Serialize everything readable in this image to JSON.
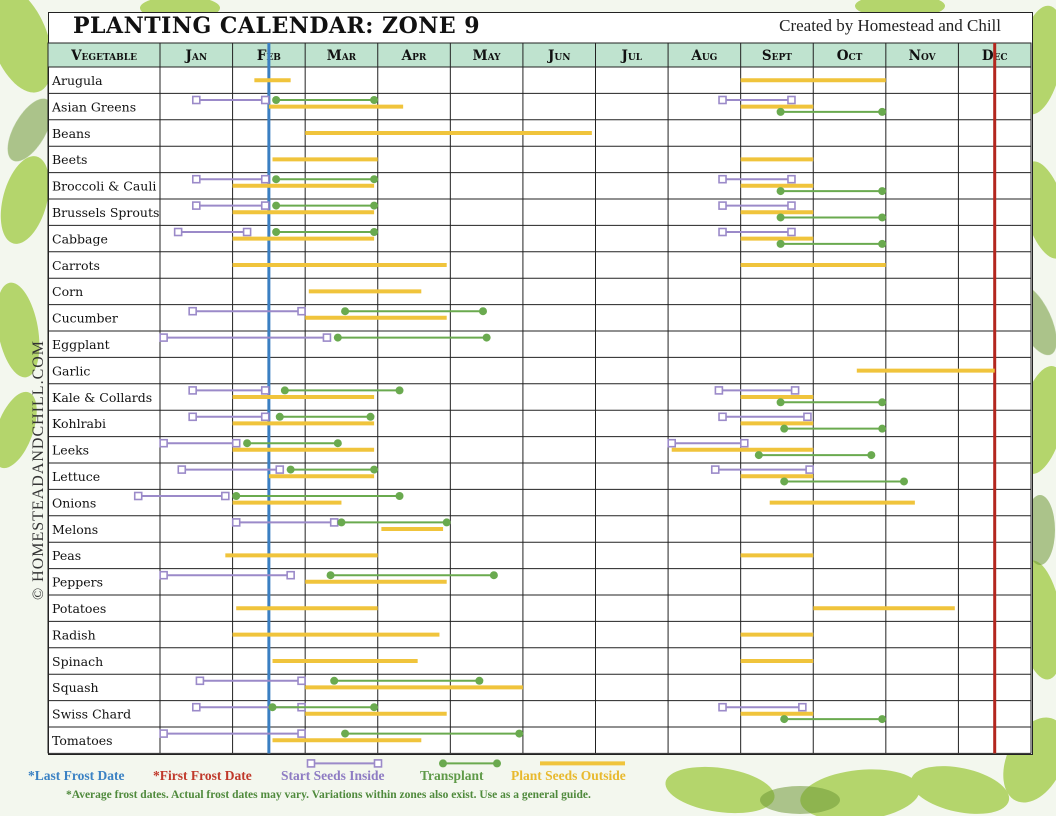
{
  "header": {
    "title": "PLANTING CALENDAR: ZONE 9",
    "credit": "Created by Homestead and Chill"
  },
  "side_text": "© HOMESTEADANDCHILL.COM",
  "legend": {
    "last_frost": "*Last Frost Date",
    "first_frost": "*First Frost Date",
    "start_inside": "Start Seeds Inside",
    "transplant": "Transplant",
    "sow_outside": "Plant Seeds Outside"
  },
  "note": "*Average frost dates. Actual frost dates may vary. Variations within zones also exist. Use as a general guide.",
  "colors": {
    "start_inside": "#9b8ac9",
    "transplant": "#6aaa4f",
    "sow_outside": "#f0c43c",
    "last_frost": "#3b7fc2",
    "first_frost": "#b3261e",
    "header_bg": "#bfe3cf",
    "legend_last_frost_text": "#3b82c4",
    "legend_first_frost_text": "#c0392b",
    "legend_start_text": "#8e7cc3",
    "legend_transplant_text": "#5f9a48",
    "legend_sow_text": "#e8b92e"
  },
  "chart_data": {
    "type": "table",
    "x_axis": "month (1.0 = start of January)",
    "columns": [
      "Vegetable",
      "Jan",
      "Feb",
      "Mar",
      "Apr",
      "May",
      "Jun",
      "Jul",
      "Aug",
      "Sept",
      "Oct",
      "Nov",
      "Dec"
    ],
    "last_frost": 2.5,
    "first_frost": 12.5,
    "rows": [
      {
        "name": "Arugula",
        "inside": [],
        "transplant": [],
        "sow": [
          [
            2.3,
            2.8
          ],
          [
            9.0,
            11.0
          ]
        ]
      },
      {
        "name": "Asian Greens",
        "inside": [
          [
            1.5,
            2.45
          ],
          [
            8.75,
            9.7
          ]
        ],
        "transplant": [
          [
            2.6,
            3.95
          ],
          [
            9.55,
            10.95
          ]
        ],
        "sow": [
          [
            2.5,
            4.35
          ],
          [
            9.0,
            10.0
          ]
        ]
      },
      {
        "name": "Beans",
        "inside": [],
        "transplant": [],
        "sow": [
          [
            3.0,
            6.95
          ]
        ]
      },
      {
        "name": "Beets",
        "inside": [],
        "transplant": [],
        "sow": [
          [
            2.55,
            4.0
          ],
          [
            9.0,
            10.0
          ]
        ]
      },
      {
        "name": "Broccoli & Cauli",
        "inside": [
          [
            1.5,
            2.45
          ],
          [
            8.75,
            9.7
          ]
        ],
        "transplant": [
          [
            2.6,
            3.95
          ],
          [
            9.55,
            10.95
          ]
        ],
        "sow": [
          [
            2.0,
            3.95
          ],
          [
            9.0,
            10.0
          ]
        ]
      },
      {
        "name": "Brussels Sprouts",
        "inside": [
          [
            1.5,
            2.45
          ],
          [
            8.75,
            9.7
          ]
        ],
        "transplant": [
          [
            2.6,
            3.95
          ],
          [
            9.55,
            10.95
          ]
        ],
        "sow": [
          [
            2.0,
            3.95
          ],
          [
            9.0,
            10.0
          ]
        ]
      },
      {
        "name": "Cabbage",
        "inside": [
          [
            1.25,
            2.2
          ],
          [
            8.75,
            9.7
          ]
        ],
        "transplant": [
          [
            2.6,
            3.95
          ],
          [
            9.55,
            10.95
          ]
        ],
        "sow": [
          [
            2.0,
            3.95
          ],
          [
            9.0,
            10.0
          ]
        ]
      },
      {
        "name": "Carrots",
        "inside": [],
        "transplant": [],
        "sow": [
          [
            2.0,
            4.95
          ],
          [
            9.0,
            11.0
          ]
        ]
      },
      {
        "name": "Corn",
        "inside": [],
        "transplant": [],
        "sow": [
          [
            3.05,
            4.6
          ]
        ]
      },
      {
        "name": "Cucumber",
        "inside": [
          [
            1.45,
            2.95
          ]
        ],
        "transplant": [
          [
            3.55,
            5.45
          ]
        ],
        "sow": [
          [
            3.0,
            4.95
          ]
        ]
      },
      {
        "name": "Eggplant",
        "inside": [
          [
            1.05,
            3.3
          ]
        ],
        "transplant": [
          [
            3.45,
            5.5
          ]
        ],
        "sow": []
      },
      {
        "name": "Garlic",
        "inside": [],
        "transplant": [],
        "sow": [
          [
            10.6,
            12.5
          ]
        ]
      },
      {
        "name": "Kale & Collards",
        "inside": [
          [
            1.45,
            2.45
          ],
          [
            8.7,
            9.75
          ]
        ],
        "transplant": [
          [
            2.72,
            4.3
          ],
          [
            9.55,
            10.95
          ]
        ],
        "sow": [
          [
            2.0,
            3.95
          ],
          [
            9.0,
            10.0
          ]
        ]
      },
      {
        "name": "Kohlrabi",
        "inside": [
          [
            1.45,
            2.45
          ],
          [
            8.75,
            9.92
          ]
        ],
        "transplant": [
          [
            2.65,
            3.9
          ],
          [
            9.6,
            10.95
          ]
        ],
        "sow": [
          [
            2.0,
            3.95
          ],
          [
            9.0,
            10.0
          ]
        ]
      },
      {
        "name": "Leeks",
        "inside": [
          [
            1.05,
            2.05
          ],
          [
            8.05,
            9.05
          ]
        ],
        "transplant": [
          [
            2.2,
            3.45
          ],
          [
            9.25,
            10.8
          ]
        ],
        "sow": [
          [
            2.0,
            3.95
          ],
          [
            8.05,
            10.0
          ]
        ]
      },
      {
        "name": "Lettuce",
        "inside": [
          [
            1.3,
            2.65
          ],
          [
            8.65,
            9.95
          ]
        ],
        "transplant": [
          [
            2.8,
            3.95
          ],
          [
            9.6,
            11.25
          ]
        ],
        "sow": [
          [
            2.5,
            3.95
          ],
          [
            9.0,
            10.0
          ]
        ]
      },
      {
        "name": "Onions",
        "inside": [
          [
            0.7,
            1.9
          ]
        ],
        "transplant": [
          [
            2.05,
            4.3
          ]
        ],
        "sow": [
          [
            2.0,
            3.5
          ],
          [
            9.4,
            11.4
          ]
        ]
      },
      {
        "name": "Melons",
        "inside": [
          [
            2.05,
            3.4
          ]
        ],
        "transplant": [
          [
            3.5,
            4.95
          ]
        ],
        "sow": [
          [
            4.05,
            4.9
          ]
        ]
      },
      {
        "name": "Peas",
        "inside": [],
        "transplant": [],
        "sow": [
          [
            1.9,
            4.0
          ],
          [
            9.0,
            10.0
          ]
        ]
      },
      {
        "name": "Peppers",
        "inside": [
          [
            1.05,
            2.8
          ]
        ],
        "transplant": [
          [
            3.35,
            5.6
          ]
        ],
        "sow": [
          [
            3.0,
            4.95
          ]
        ]
      },
      {
        "name": "Potatoes",
        "inside": [],
        "transplant": [],
        "sow": [
          [
            2.05,
            4.0
          ],
          [
            10.0,
            11.95
          ]
        ]
      },
      {
        "name": "Radish",
        "inside": [],
        "transplant": [],
        "sow": [
          [
            2.0,
            4.85
          ],
          [
            9.0,
            10.0
          ]
        ]
      },
      {
        "name": "Spinach",
        "inside": [],
        "transplant": [],
        "sow": [
          [
            2.55,
            4.55
          ],
          [
            9.0,
            10.0
          ]
        ]
      },
      {
        "name": "Squash",
        "inside": [
          [
            1.55,
            2.95
          ]
        ],
        "transplant": [
          [
            3.4,
            5.4
          ]
        ],
        "sow": [
          [
            3.0,
            6.0
          ]
        ]
      },
      {
        "name": "Swiss Chard",
        "inside": [
          [
            1.5,
            2.95
          ],
          [
            8.75,
            9.85
          ]
        ],
        "transplant": [
          [
            2.55,
            3.95
          ],
          [
            9.6,
            10.95
          ]
        ],
        "sow": [
          [
            3.0,
            4.95
          ],
          [
            9.0,
            10.0
          ]
        ]
      },
      {
        "name": "Tomatoes",
        "inside": [
          [
            1.05,
            2.95
          ]
        ],
        "transplant": [
          [
            3.55,
            5.95
          ]
        ],
        "sow": [
          [
            2.55,
            4.6
          ]
        ]
      }
    ]
  }
}
